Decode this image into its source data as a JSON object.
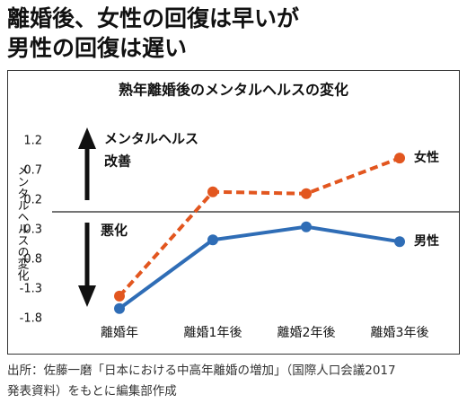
{
  "headline": [
    "離婚後、女性の回復は早いが",
    "男性の回復は遅い"
  ],
  "source": [
    "出所：佐藤一磨「日本における中高年離婚の増加」（国際人口会議2017",
    "発表資料）をもとに編集部作成"
  ],
  "chart_data": {
    "type": "line",
    "title": "熟年離婚後のメンタルヘルスの変化",
    "y_label": "メンタルヘルスの変化",
    "annotations": [
      "メンタルヘルス",
      "改善",
      "悪化"
    ],
    "categories": [
      "離婚年",
      "離婚1年後",
      "離婚2年後",
      "離婚3年後"
    ],
    "series": [
      {
        "name": "女性",
        "color": "#e2561f",
        "line_style": "dashed",
        "values": [
          -1.42,
          0.34,
          0.31,
          0.91
        ]
      },
      {
        "name": "男性",
        "color": "#2f6db6",
        "line_style": "solid",
        "values": [
          -1.63,
          -0.47,
          -0.25,
          -0.5
        ]
      }
    ],
    "ylim": [
      -1.8,
      1.2
    ],
    "yticks": [
      1.2,
      0.7,
      0.2,
      -0.3,
      -0.8,
      -1.3,
      -1.8
    ],
    "grid": false
  }
}
